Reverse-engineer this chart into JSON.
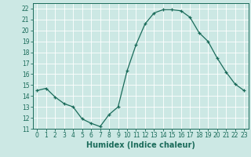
{
  "x": [
    0,
    1,
    2,
    3,
    4,
    5,
    6,
    7,
    8,
    9,
    10,
    11,
    12,
    13,
    14,
    15,
    16,
    17,
    18,
    19,
    20,
    21,
    22,
    23
  ],
  "y": [
    14.5,
    14.7,
    13.9,
    13.3,
    13.0,
    11.9,
    11.5,
    11.2,
    12.3,
    13.0,
    16.3,
    18.7,
    20.6,
    21.6,
    21.9,
    21.9,
    21.8,
    21.2,
    19.8,
    19.0,
    17.5,
    16.2,
    15.1,
    14.5
  ],
  "xlabel": "Humidex (Indice chaleur)",
  "ylim": [
    11,
    22.5
  ],
  "xlim": [
    -0.5,
    23.5
  ],
  "yticks": [
    11,
    12,
    13,
    14,
    15,
    16,
    17,
    18,
    19,
    20,
    21,
    22
  ],
  "xticks": [
    0,
    1,
    2,
    3,
    4,
    5,
    6,
    7,
    8,
    9,
    10,
    11,
    12,
    13,
    14,
    15,
    16,
    17,
    18,
    19,
    20,
    21,
    22,
    23
  ],
  "line_color": "#1a6b5a",
  "marker": "+",
  "bg_color": "#cce8e4",
  "grid_color": "#ffffff",
  "label_fontsize": 6.5,
  "tick_fontsize": 5.5,
  "xlabel_fontsize": 7.0
}
